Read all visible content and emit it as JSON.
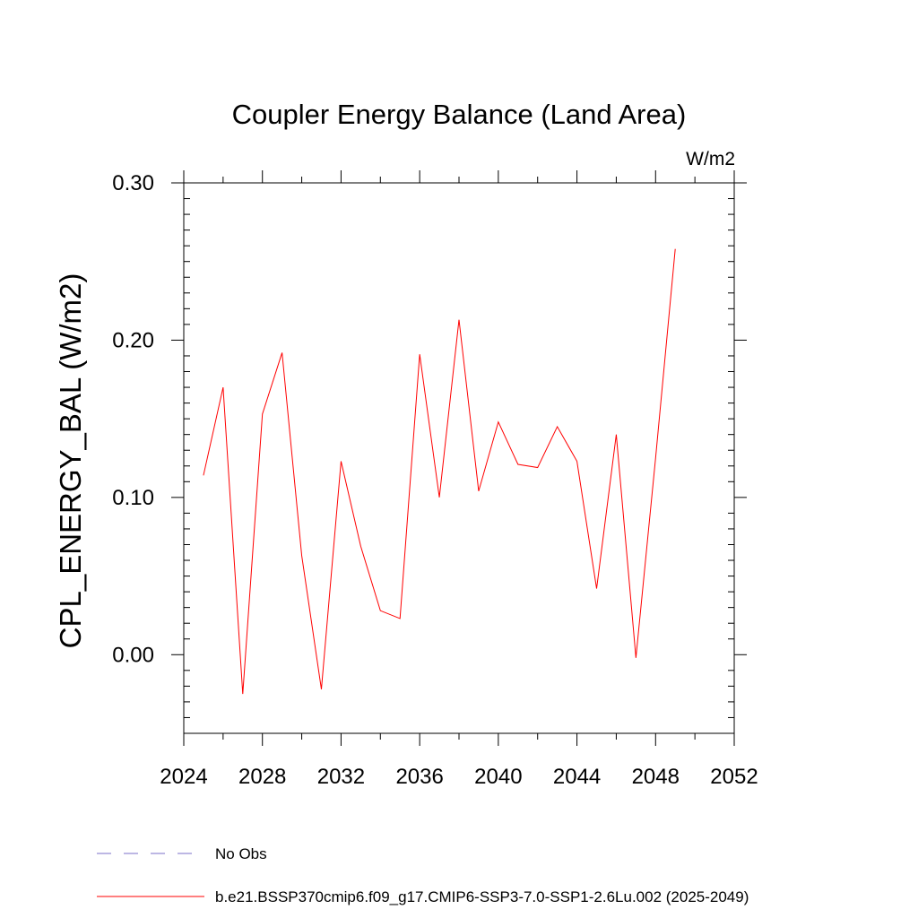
{
  "chart_data": {
    "type": "line",
    "title": "Coupler Energy Balance (Land Area)",
    "units": "W/m2",
    "ylabel": "CPL_ENERGY_BAL  (W/m2)",
    "xlabel": "",
    "xlim": [
      2024,
      2052
    ],
    "ylim": [
      -0.05,
      0.3
    ],
    "x_ticks": [
      2024,
      2028,
      2032,
      2036,
      2040,
      2044,
      2048,
      2052
    ],
    "x_tick_labels": [
      "2024",
      "2028",
      "2032",
      "2036",
      "2040",
      "2044",
      "2048",
      "2052"
    ],
    "y_ticks": [
      0.0,
      0.1,
      0.2,
      0.3
    ],
    "y_tick_labels": [
      "0.00",
      "0.10",
      "0.20",
      "0.30"
    ],
    "grid": false,
    "legend_position": "bottom",
    "series": [
      {
        "name": "No Obs",
        "color": "#7b6fc8",
        "style": "dashed",
        "x": [],
        "values": []
      },
      {
        "name": "b.e21.BSSP370cmip6.f09_g17.CMIP6-SSP3-7.0-SSP1-2.6Lu.002 (2025-2049)",
        "color": "#ff0000",
        "style": "solid",
        "x": [
          2025,
          2026,
          2027,
          2028,
          2029,
          2030,
          2031,
          2032,
          2033,
          2034,
          2035,
          2036,
          2037,
          2038,
          2039,
          2040,
          2041,
          2042,
          2043,
          2044,
          2045,
          2046,
          2047,
          2048,
          2049
        ],
        "values": [
          0.114,
          0.17,
          -0.025,
          0.153,
          0.192,
          0.063,
          -0.022,
          0.123,
          0.069,
          0.028,
          0.023,
          0.191,
          0.1,
          0.213,
          0.104,
          0.148,
          0.121,
          0.119,
          0.145,
          0.123,
          0.042,
          0.14,
          -0.002,
          0.125,
          0.258
        ]
      }
    ]
  }
}
